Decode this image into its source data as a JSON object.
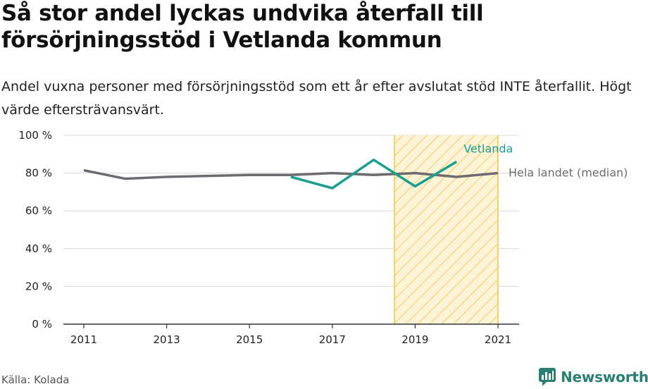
{
  "header": {
    "title": "Så stor andel lyckas undvika återfall till försörjningsstöd i Vetlanda kommun",
    "subtitle": "Andel vuxna personer med försörjningsstöd som ett år efter avslutat stöd INTE återfallit. Högt värde eftersträvansvärt."
  },
  "footer": {
    "source": "Källa: Kolada",
    "brand": "Newsworthy"
  },
  "colors": {
    "vetlanda": "#1a9e8f",
    "median": "#6e6b70",
    "highlight_stroke": "#f5c342",
    "highlight_fill": "#fdf3d6",
    "grid": "#d9d9d9",
    "brand": "#2a7f73"
  },
  "chart_data": {
    "type": "line",
    "x": [
      2011,
      2012,
      2013,
      2014,
      2015,
      2016,
      2017,
      2018,
      2019,
      2020,
      2021
    ],
    "xticks": [
      "2011",
      "2013",
      "2015",
      "2017",
      "2019",
      "2021"
    ],
    "yticks": [
      "0 %",
      "20 %",
      "40 %",
      "60 %",
      "80 %",
      "100 %"
    ],
    "ylim": [
      0,
      100
    ],
    "xlim": [
      2011,
      2021
    ],
    "series": [
      {
        "name": "Hela landet (median)",
        "color": "#6e6b70",
        "x": [
          2011,
          2012,
          2013,
          2014,
          2015,
          2016,
          2017,
          2018,
          2019,
          2020,
          2021
        ],
        "values": [
          81.5,
          77,
          78,
          78.5,
          79,
          79,
          80,
          79,
          80,
          78,
          80
        ]
      },
      {
        "name": "Vetlanda",
        "color": "#1a9e8f",
        "x": [
          2016,
          2017,
          2018,
          2019,
          2020
        ],
        "values": [
          78,
          72,
          87,
          73,
          86
        ]
      }
    ],
    "highlight_range": [
      2018.5,
      2021
    ],
    "grid": true
  }
}
